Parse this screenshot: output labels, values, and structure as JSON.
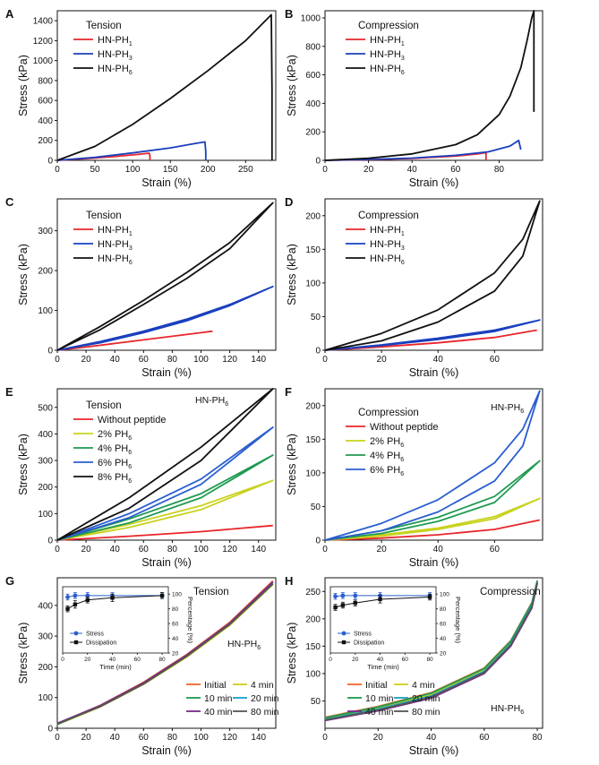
{
  "colors": {
    "red": "#e8262b",
    "blue": "#1a3fbf",
    "black": "#111111",
    "yellow": "#c8d21e",
    "green": "#1e9a50",
    "midblue": "#2a5ed0",
    "orange": "#f0672a",
    "purple": "#7a2a8a",
    "cyan": "#1aa0c8",
    "gray": "#555555"
  },
  "chart_data": [
    {
      "panel": "A",
      "type": "line",
      "xlabel": "Strain (%)",
      "ylabel": "Stress (kPa)",
      "xlim": [
        0,
        290
      ],
      "ylim": [
        0,
        1500
      ],
      "xticks": [
        0,
        50,
        100,
        150,
        200,
        250
      ],
      "yticks": [
        0,
        200,
        400,
        600,
        800,
        1000,
        1200,
        1400
      ],
      "legend_title": "Tension",
      "series": [
        {
          "name": "HN-PH",
          "sub": "1",
          "color": "red",
          "x": [
            0,
            40,
            80,
            110,
            122,
            123,
            123
          ],
          "y": [
            0,
            18,
            40,
            62,
            72,
            40,
            0
          ]
        },
        {
          "name": "HN-PH",
          "sub": "3",
          "color": "blue",
          "x": [
            0,
            50,
            100,
            150,
            180,
            196,
            197,
            197
          ],
          "y": [
            0,
            30,
            75,
            125,
            165,
            185,
            90,
            0
          ]
        },
        {
          "name": "HN-PH",
          "sub": "6",
          "color": "black",
          "x": [
            0,
            50,
            100,
            150,
            200,
            250,
            284,
            285,
            285
          ],
          "y": [
            0,
            140,
            360,
            620,
            900,
            1200,
            1460,
            700,
            0
          ]
        }
      ]
    },
    {
      "panel": "B",
      "type": "line",
      "xlabel": "Strain (%)",
      "ylabel": "Stress (kPa)",
      "xlim": [
        0,
        100
      ],
      "ylim": [
        0,
        1050
      ],
      "xticks": [
        0,
        20,
        40,
        60,
        80
      ],
      "yticks": [
        0,
        200,
        400,
        600,
        800,
        1000
      ],
      "legend_title": "Compression",
      "series": [
        {
          "name": "HN-PH",
          "sub": "1",
          "color": "red",
          "x": [
            0,
            20,
            40,
            60,
            70,
            74,
            74
          ],
          "y": [
            0,
            5,
            14,
            30,
            45,
            55,
            0
          ]
        },
        {
          "name": "HN-PH",
          "sub": "3",
          "color": "blue",
          "x": [
            0,
            20,
            40,
            60,
            75,
            85,
            89,
            90
          ],
          "y": [
            0,
            6,
            16,
            35,
            60,
            100,
            140,
            75
          ]
        },
        {
          "name": "HN-PH",
          "sub": "6",
          "color": "black",
          "x": [
            0,
            20,
            40,
            60,
            70,
            80,
            85,
            90,
            93,
            95,
            96,
            96
          ],
          "y": [
            0,
            15,
            45,
            110,
            180,
            320,
            450,
            650,
            850,
            1000,
            1050,
            340
          ]
        }
      ]
    },
    {
      "panel": "C",
      "type": "line",
      "xlabel": "Strain (%)",
      "ylabel": "Stress (kPa)",
      "xlim": [
        0,
        152
      ],
      "ylim": [
        0,
        380
      ],
      "xticks": [
        0,
        20,
        40,
        60,
        80,
        100,
        120,
        140
      ],
      "yticks": [
        0,
        100,
        200,
        300
      ],
      "legend_title": "Tension",
      "series": [
        {
          "name": "HN-PH",
          "sub": "1",
          "color": "red",
          "x": [
            0,
            20,
            40,
            60,
            80,
            100,
            108
          ],
          "y": [
            0,
            8,
            17,
            26,
            35,
            44,
            48
          ]
        },
        {
          "name": "HN-PH",
          "sub": "3",
          "color": "blue",
          "x": [
            0,
            30,
            60,
            90,
            120,
            150,
            120,
            90,
            60,
            30,
            0
          ],
          "y": [
            0,
            22,
            48,
            78,
            115,
            160,
            112,
            74,
            44,
            19,
            0
          ]
        },
        {
          "name": "HN-PH",
          "sub": "6",
          "color": "black",
          "x": [
            0,
            30,
            60,
            90,
            120,
            150,
            120,
            90,
            60,
            30,
            0
          ],
          "y": [
            0,
            60,
            125,
            195,
            270,
            370,
            255,
            180,
            115,
            52,
            0
          ]
        }
      ]
    },
    {
      "panel": "D",
      "type": "line",
      "xlabel": "Strain (%)",
      "ylabel": "Stress (kPa)",
      "xlim": [
        0,
        77
      ],
      "ylim": [
        0,
        225
      ],
      "xticks": [
        0,
        20,
        40,
        60
      ],
      "yticks": [
        0,
        50,
        100,
        150,
        200
      ],
      "legend_title": "Compression",
      "series": [
        {
          "name": "HN-PH",
          "sub": "1",
          "color": "red",
          "x": [
            0,
            20,
            40,
            60,
            75
          ],
          "y": [
            0,
            5,
            11,
            19,
            30
          ]
        },
        {
          "name": "HN-PH",
          "sub": "3",
          "color": "blue",
          "x": [
            0,
            20,
            40,
            60,
            76,
            60,
            40,
            20,
            0
          ],
          "y": [
            0,
            8,
            18,
            30,
            45,
            28,
            16,
            7,
            0
          ]
        },
        {
          "name": "HN-PH",
          "sub": "6",
          "color": "black",
          "x": [
            0,
            20,
            40,
            60,
            70,
            76,
            70,
            60,
            40,
            20,
            0
          ],
          "y": [
            0,
            25,
            60,
            115,
            165,
            222,
            140,
            88,
            42,
            14,
            0
          ]
        }
      ]
    },
    {
      "panel": "E",
      "type": "line",
      "xlabel": "Strain (%)",
      "ylabel": "Stress (kPa)",
      "xlim": [
        0,
        152
      ],
      "ylim": [
        0,
        570
      ],
      "xticks": [
        0,
        20,
        40,
        60,
        80,
        100,
        120,
        140
      ],
      "yticks": [
        0,
        100,
        200,
        300,
        400,
        500
      ],
      "legend_title": "Tension",
      "annotation": "HN-PH",
      "annotation_sub": "6",
      "series": [
        {
          "name": "Without peptide",
          "color": "red",
          "x": [
            0,
            50,
            100,
            150
          ],
          "y": [
            0,
            15,
            32,
            55
          ]
        },
        {
          "name": "2% PH",
          "sub": "6",
          "color": "yellow",
          "x": [
            0,
            50,
            100,
            150,
            100,
            50,
            0
          ],
          "y": [
            0,
            60,
            130,
            225,
            115,
            48,
            0
          ]
        },
        {
          "name": "4% PH",
          "sub": "6",
          "color": "green",
          "x": [
            0,
            50,
            100,
            150,
            100,
            50,
            0
          ],
          "y": [
            0,
            80,
            175,
            320,
            160,
            65,
            0
          ]
        },
        {
          "name": "6% PH",
          "sub": "6",
          "color": "midblue",
          "x": [
            0,
            50,
            100,
            150,
            100,
            50,
            0
          ],
          "y": [
            0,
            100,
            230,
            425,
            210,
            85,
            0
          ]
        },
        {
          "name": "8% PH",
          "sub": "6",
          "color": "black",
          "x": [
            0,
            50,
            100,
            150,
            100,
            50,
            0
          ],
          "y": [
            0,
            160,
            350,
            570,
            300,
            120,
            0
          ]
        }
      ]
    },
    {
      "panel": "F",
      "type": "line",
      "xlabel": "Strain (%)",
      "ylabel": "Stress (kPa)",
      "xlim": [
        0,
        77
      ],
      "ylim": [
        0,
        225
      ],
      "xticks": [
        0,
        20,
        40,
        60
      ],
      "yticks": [
        0,
        50,
        100,
        150,
        200
      ],
      "legend_title": "Compression",
      "annotation": "HN-PH",
      "annotation_sub": "6",
      "series": [
        {
          "name": "Without peptide",
          "color": "red",
          "x": [
            0,
            20,
            40,
            60,
            76
          ],
          "y": [
            0,
            3,
            8,
            16,
            30
          ]
        },
        {
          "name": "2% PH",
          "sub": "6",
          "color": "yellow",
          "x": [
            0,
            20,
            40,
            60,
            76,
            60,
            40,
            20,
            0
          ],
          "y": [
            0,
            8,
            18,
            35,
            62,
            32,
            16,
            6,
            0
          ]
        },
        {
          "name": "4% PH",
          "sub": "6",
          "color": "green",
          "x": [
            0,
            20,
            40,
            60,
            76,
            60,
            40,
            20,
            0
          ],
          "y": [
            0,
            14,
            34,
            65,
            118,
            56,
            28,
            10,
            0
          ]
        },
        {
          "name": "6% PH",
          "sub": "6",
          "color": "midblue",
          "x": [
            0,
            20,
            40,
            60,
            70,
            76,
            70,
            60,
            40,
            20,
            0
          ],
          "y": [
            0,
            25,
            60,
            115,
            165,
            222,
            140,
            88,
            42,
            14,
            0
          ]
        }
      ]
    },
    {
      "panel": "G",
      "type": "line",
      "xlabel": "Strain (%)",
      "ylabel": "Stress (kPa)",
      "xlim": [
        0,
        152
      ],
      "ylim": [
        0,
        490
      ],
      "xticks": [
        0,
        20,
        40,
        60,
        80,
        100,
        120,
        140
      ],
      "yticks": [
        0,
        100,
        200,
        300,
        400
      ],
      "legend_title": "Tension",
      "annotation": "HN-PH",
      "annotation_sub": "6",
      "series": [
        {
          "name": "Initial",
          "color": "orange",
          "x": [
            0,
            30,
            60,
            90,
            120,
            150
          ],
          "y": [
            15,
            75,
            150,
            240,
            345,
            480
          ]
        },
        {
          "name": "4 min",
          "color": "yellow",
          "x": [
            0,
            30,
            60,
            90,
            120,
            150
          ],
          "y": [
            12,
            70,
            143,
            232,
            335,
            468
          ]
        },
        {
          "name": "10 min",
          "color": "green",
          "x": [
            0,
            30,
            60,
            90,
            120,
            150
          ],
          "y": [
            13,
            72,
            146,
            236,
            340,
            474
          ]
        },
        {
          "name": "20 min",
          "color": "cyan",
          "x": [
            0,
            30,
            60,
            90,
            120,
            150
          ],
          "y": [
            14,
            73,
            147,
            237,
            341,
            476
          ]
        },
        {
          "name": "40 min",
          "color": "purple",
          "x": [
            0,
            30,
            60,
            90,
            120,
            150
          ],
          "y": [
            16,
            74,
            148,
            238,
            342,
            477
          ]
        },
        {
          "name": "80 min",
          "color": "gray",
          "x": [
            0,
            30,
            60,
            90,
            120,
            150
          ],
          "y": [
            14,
            71,
            144,
            234,
            338,
            470
          ]
        }
      ],
      "inset": {
        "xlabel": "Time (min)",
        "ylabel": "Percentage (%)",
        "xlim": [
          0,
          85
        ],
        "ylim": [
          20,
          110
        ],
        "xticks": [
          0,
          20,
          40,
          60,
          80
        ],
        "yticks": [
          20,
          40,
          60,
          80,
          100
        ],
        "series": [
          {
            "name": "Stress",
            "color": "midblue",
            "marker": "circle",
            "x": [
              4,
              10,
              20,
              40,
              80
            ],
            "y": [
              96,
              98,
              98,
              98,
              98
            ],
            "err": [
              4,
              4,
              4,
              4,
              4
            ]
          },
          {
            "name": "Dissipation",
            "color": "black",
            "marker": "square",
            "x": [
              4,
              10,
              20,
              40,
              80
            ],
            "y": [
              80,
              86,
              92,
              95,
              98
            ],
            "err": [
              4,
              5,
              4,
              5,
              4
            ]
          }
        ]
      }
    },
    {
      "panel": "H",
      "type": "line",
      "xlabel": "Strain (%)",
      "ylabel": "Stress (kPa)",
      "xlim": [
        0,
        82
      ],
      "ylim": [
        0,
        275
      ],
      "xticks": [
        0,
        20,
        40,
        60,
        80
      ],
      "yticks": [
        50,
        100,
        150,
        200,
        250
      ],
      "legend_title": "Compression",
      "annotation": "HN-PH",
      "annotation_sub": "6",
      "series": [
        {
          "name": "Initial",
          "color": "orange",
          "x": [
            0,
            20,
            40,
            60,
            70,
            78,
            80
          ],
          "y": [
            20,
            40,
            65,
            110,
            160,
            230,
            270
          ]
        },
        {
          "name": "4 min",
          "color": "yellow",
          "x": [
            0,
            20,
            40,
            60,
            70,
            78,
            80
          ],
          "y": [
            17,
            37,
            61,
            106,
            156,
            226,
            268
          ]
        },
        {
          "name": "10 min",
          "color": "green",
          "x": [
            0,
            20,
            40,
            60,
            70,
            78,
            80
          ],
          "y": [
            19,
            39,
            64,
            109,
            159,
            229,
            270
          ]
        },
        {
          "name": "20 min",
          "color": "cyan",
          "x": [
            0,
            20,
            40,
            60,
            70,
            78,
            80
          ],
          "y": [
            16,
            35,
            59,
            104,
            154,
            224,
            267
          ]
        },
        {
          "name": "40 min",
          "color": "purple",
          "x": [
            0,
            20,
            40,
            60,
            70,
            78,
            80
          ],
          "y": [
            14,
            32,
            55,
            100,
            150,
            220,
            265
          ]
        },
        {
          "name": "80 min",
          "color": "gray",
          "x": [
            0,
            20,
            40,
            60,
            70,
            78,
            80
          ],
          "y": [
            15,
            33,
            57,
            102,
            152,
            222,
            266
          ]
        }
      ],
      "inset": {
        "xlabel": "Time (min)",
        "ylabel": "Percentage (%)",
        "xlim": [
          0,
          85
        ],
        "ylim": [
          20,
          110
        ],
        "xticks": [
          0,
          20,
          40,
          60,
          80
        ],
        "yticks": [
          20,
          40,
          60,
          80,
          100
        ],
        "series": [
          {
            "name": "Stress",
            "color": "midblue",
            "marker": "circle",
            "x": [
              4,
              10,
              20,
              40,
              80
            ],
            "y": [
              97,
              98,
              98,
              98,
              98
            ],
            "err": [
              4,
              4,
              4,
              4,
              4
            ]
          },
          {
            "name": "Dissipation",
            "color": "black",
            "marker": "square",
            "x": [
              4,
              10,
              20,
              40,
              80
            ],
            "y": [
              82,
              85,
              88,
              93,
              96
            ],
            "err": [
              4,
              4,
              4,
              5,
              4
            ]
          }
        ]
      }
    }
  ]
}
